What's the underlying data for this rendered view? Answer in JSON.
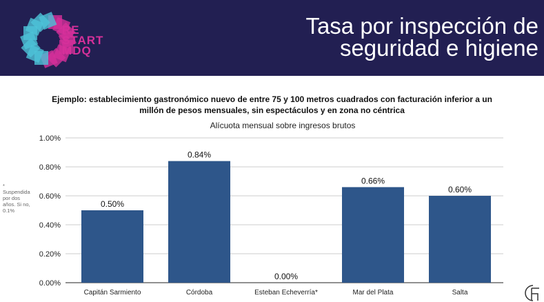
{
  "header": {
    "logo_lines": [
      "RE",
      "START",
      "MDQ"
    ],
    "title_line1": "Tasa por inspección de",
    "title_line2": "seguridad e higiene",
    "bg": "#221f52"
  },
  "subtitle_line1": "Ejemplo: establecimiento gastronómico nuevo de entre 75 y 100 metros cuadrados con facturación inferior a un",
  "subtitle_line2": "millón de pesos mensuales, sin espectáculos y en zona no céntrica",
  "note": "* Suspendida por dos años. Si no, 0.1%",
  "chart_data": {
    "type": "bar",
    "title": "Alícuota mensual sobre ingresos brutos",
    "categories": [
      "Capitán Sarmiento",
      "Córdoba",
      "Esteban Echeverría*",
      "Mar del Plata",
      "Salta"
    ],
    "values": [
      0.5,
      0.84,
      0.0,
      0.66,
      0.6
    ],
    "data_labels": [
      "0.50%",
      "0.84%",
      "0.00%",
      "0.66%",
      "0.60%"
    ],
    "ylim": [
      0,
      1
    ],
    "yticks": [
      "0.00%",
      "0.20%",
      "0.40%",
      "0.60%",
      "0.80%",
      "1.00%"
    ],
    "grid": true,
    "color": "#2e568a"
  }
}
